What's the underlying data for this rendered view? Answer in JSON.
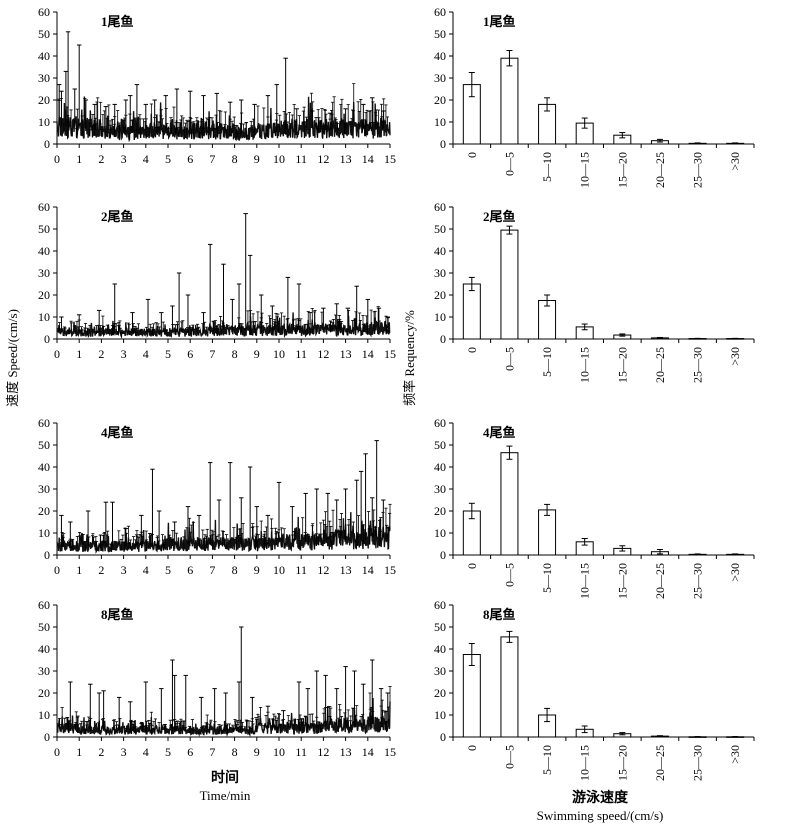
{
  "chart_data": [
    {
      "type": "line",
      "label": "1尾鱼",
      "x_range": [
        0,
        15
      ],
      "ylim": [
        0,
        60
      ],
      "y_ticks": [
        0,
        10,
        20,
        30,
        40,
        50,
        60
      ],
      "x_ticks": [
        "0",
        "1",
        "2",
        "3",
        "4",
        "5",
        "6",
        "7",
        "8",
        "9",
        "10",
        "11",
        "12",
        "13",
        "14",
        "15"
      ],
      "base": [
        8,
        7,
        5,
        5,
        6,
        6,
        6,
        6,
        5,
        6,
        7,
        7,
        7,
        7,
        7,
        6
      ],
      "spikes": [
        [
          0.1,
          27
        ],
        [
          0.2,
          24
        ],
        [
          0.4,
          33
        ],
        [
          0.5,
          51
        ],
        [
          0.8,
          25
        ],
        [
          1.0,
          45
        ],
        [
          1.3,
          20
        ],
        [
          1.7,
          18
        ],
        [
          2.2,
          17
        ],
        [
          2.6,
          18
        ],
        [
          3.1,
          20
        ],
        [
          3.3,
          22
        ],
        [
          3.6,
          27
        ],
        [
          4.0,
          18
        ],
        [
          4.4,
          20
        ],
        [
          4.9,
          22
        ],
        [
          5.4,
          25
        ],
        [
          6.0,
          24
        ],
        [
          6.6,
          22
        ],
        [
          7.2,
          23
        ],
        [
          7.8,
          19
        ],
        [
          8.3,
          20
        ],
        [
          8.9,
          18
        ],
        [
          9.5,
          22
        ],
        [
          9.9,
          27
        ],
        [
          10.3,
          39
        ],
        [
          10.8,
          16
        ],
        [
          11.5,
          15
        ],
        [
          12.3,
          14
        ],
        [
          13.0,
          16
        ],
        [
          13.8,
          18
        ],
        [
          14.2,
          21
        ],
        [
          14.7,
          15
        ]
      ]
    },
    {
      "type": "bar",
      "label": "1尾鱼",
      "categories": [
        "0",
        "0—5",
        "5—10",
        "10—15",
        "15—20",
        "20—25",
        "25—30",
        ">30"
      ],
      "values": [
        27,
        39,
        18,
        9.5,
        4,
        1.5,
        0.3,
        0.3
      ],
      "errors": [
        5.5,
        3.5,
        3,
        2.3,
        1.2,
        0.6,
        0.2,
        0.2
      ],
      "ylim": [
        0,
        60
      ],
      "y_ticks": [
        0,
        10,
        20,
        30,
        40,
        50,
        60
      ]
    },
    {
      "type": "line",
      "label": "2尾鱼",
      "x_range": [
        0,
        15
      ],
      "ylim": [
        0,
        60
      ],
      "y_ticks": [
        0,
        10,
        20,
        30,
        40,
        50,
        60
      ],
      "x_ticks": [
        "0",
        "1",
        "2",
        "3",
        "4",
        "5",
        "6",
        "7",
        "8",
        "9",
        "10",
        "11",
        "12",
        "13",
        "14",
        "15"
      ],
      "base": [
        3,
        3,
        3,
        3,
        3,
        3,
        3,
        4,
        4,
        4,
        4,
        4,
        4,
        4,
        5,
        5
      ],
      "spikes": [
        [
          0.2,
          10
        ],
        [
          1.0,
          11
        ],
        [
          1.9,
          13
        ],
        [
          2.6,
          25
        ],
        [
          3.4,
          12
        ],
        [
          4.1,
          18
        ],
        [
          4.7,
          12
        ],
        [
          5.2,
          15
        ],
        [
          5.5,
          30
        ],
        [
          5.9,
          20
        ],
        [
          6.6,
          12
        ],
        [
          6.9,
          43
        ],
        [
          7.5,
          34
        ],
        [
          7.9,
          18
        ],
        [
          8.2,
          25
        ],
        [
          8.5,
          57
        ],
        [
          8.7,
          38
        ],
        [
          9.2,
          20
        ],
        [
          9.7,
          15
        ],
        [
          10.4,
          28
        ],
        [
          10.9,
          25
        ],
        [
          11.4,
          12
        ],
        [
          12.0,
          14
        ],
        [
          12.6,
          16
        ],
        [
          13.1,
          14
        ],
        [
          13.5,
          24
        ],
        [
          14.0,
          18
        ],
        [
          14.5,
          14
        ],
        [
          14.9,
          10
        ]
      ]
    },
    {
      "type": "bar",
      "label": "2尾鱼",
      "categories": [
        "0",
        "0—5",
        "5—10",
        "10—15",
        "15—20",
        "20—25",
        "25—30",
        ">30"
      ],
      "values": [
        25,
        49.5,
        17.5,
        5.5,
        1.8,
        0.5,
        0.2,
        0.2
      ],
      "errors": [
        3,
        1.8,
        2.5,
        1.3,
        0.5,
        0.2,
        0.1,
        0.1
      ],
      "ylim": [
        0,
        60
      ],
      "y_ticks": [
        0,
        10,
        20,
        30,
        40,
        50,
        60
      ],
      "ylabel": "频率 Requency/%"
    },
    {
      "type": "line",
      "label": "4尾鱼",
      "x_range": [
        0,
        15
      ],
      "ylim": [
        0,
        60
      ],
      "y_ticks": [
        0,
        10,
        20,
        30,
        40,
        50,
        60
      ],
      "x_ticks": [
        "0",
        "1",
        "2",
        "3",
        "4",
        "5",
        "6",
        "7",
        "8",
        "9",
        "10",
        "11",
        "12",
        "13",
        "14",
        "15"
      ],
      "base": [
        4,
        4,
        4,
        4,
        4,
        5,
        5,
        5,
        5,
        5,
        6,
        6,
        7,
        7,
        8,
        8
      ],
      "spikes": [
        [
          0.2,
          18
        ],
        [
          0.6,
          15
        ],
        [
          1.4,
          20
        ],
        [
          2.2,
          24
        ],
        [
          2.5,
          24
        ],
        [
          3.1,
          12
        ],
        [
          3.8,
          18
        ],
        [
          4.3,
          39
        ],
        [
          4.6,
          20
        ],
        [
          5.3,
          15
        ],
        [
          5.9,
          22
        ],
        [
          6.4,
          18
        ],
        [
          6.9,
          42
        ],
        [
          7.3,
          25
        ],
        [
          7.8,
          42
        ],
        [
          8.3,
          26
        ],
        [
          8.7,
          40
        ],
        [
          9.0,
          22
        ],
        [
          9.5,
          18
        ],
        [
          10.0,
          33
        ],
        [
          10.6,
          22
        ],
        [
          11.2,
          28
        ],
        [
          11.7,
          30
        ],
        [
          12.2,
          28
        ],
        [
          12.6,
          25
        ],
        [
          13.0,
          30
        ],
        [
          13.5,
          34
        ],
        [
          13.7,
          38
        ],
        [
          13.9,
          46
        ],
        [
          14.2,
          26
        ],
        [
          14.4,
          52
        ],
        [
          14.7,
          25
        ]
      ]
    },
    {
      "type": "bar",
      "label": "4尾鱼",
      "categories": [
        "0",
        "0—5",
        "5—10",
        "10—15",
        "15—20",
        "20—25",
        "25—30",
        ">30"
      ],
      "values": [
        20,
        46.5,
        20.5,
        6,
        3,
        1.5,
        0.3,
        0.3
      ],
      "errors": [
        3.5,
        3,
        2.5,
        1.5,
        1.2,
        1,
        0.2,
        0.2
      ],
      "ylim": [
        0,
        60
      ],
      "y_ticks": [
        0,
        10,
        20,
        30,
        40,
        50,
        60
      ]
    },
    {
      "type": "line",
      "label": "8尾鱼",
      "x_range": [
        0,
        15
      ],
      "ylim": [
        0,
        60
      ],
      "y_ticks": [
        0,
        10,
        20,
        30,
        40,
        50,
        60
      ],
      "x_ticks": [
        "0",
        "1",
        "2",
        "3",
        "4",
        "5",
        "6",
        "7",
        "8",
        "9",
        "10",
        "11",
        "12",
        "13",
        "14",
        "15"
      ],
      "base": [
        4,
        3,
        3,
        3,
        3,
        3,
        3,
        3,
        3,
        4,
        4,
        4,
        5,
        5,
        6,
        7
      ],
      "spikes": [
        [
          0.6,
          25
        ],
        [
          1.5,
          24
        ],
        [
          1.9,
          20
        ],
        [
          2.1,
          21
        ],
        [
          2.8,
          18
        ],
        [
          3.3,
          16
        ],
        [
          4.0,
          25
        ],
        [
          4.7,
          22
        ],
        [
          5.2,
          35
        ],
        [
          5.3,
          28
        ],
        [
          5.8,
          28
        ],
        [
          6.5,
          18
        ],
        [
          7.1,
          22
        ],
        [
          7.6,
          20
        ],
        [
          8.2,
          25
        ],
        [
          8.3,
          50
        ],
        [
          8.8,
          18
        ],
        [
          9.5,
          14
        ],
        [
          10.2,
          12
        ],
        [
          10.9,
          25
        ],
        [
          11.3,
          22
        ],
        [
          11.7,
          30
        ],
        [
          12.1,
          28
        ],
        [
          12.6,
          22
        ],
        [
          13.0,
          32
        ],
        [
          13.4,
          30
        ],
        [
          13.8,
          24
        ],
        [
          14.2,
          35
        ],
        [
          14.6,
          22
        ],
        [
          14.9,
          20
        ]
      ]
    },
    {
      "type": "bar",
      "label": "8尾鱼",
      "categories": [
        "0",
        "0—5",
        "5—10",
        "10—15",
        "15—20",
        "20—25",
        "25—30",
        ">30"
      ],
      "values": [
        37.5,
        45.5,
        10,
        3.5,
        1.5,
        0.4,
        0.1,
        0.1
      ],
      "errors": [
        5,
        2.5,
        3,
        1.5,
        0.5,
        0.2,
        0.1,
        0.1
      ],
      "ylim": [
        0,
        60
      ],
      "y_ticks": [
        0,
        10,
        20,
        30,
        40,
        50,
        60
      ]
    }
  ],
  "left_axis": {
    "ylabel": "速度 Speed/(cm/s)",
    "xlabel_cn": "时间",
    "xlabel_en": "Time/min"
  },
  "right_axis": {
    "xlabel_cn": "游泳速度",
    "xlabel_en": "Swimming speed/(cm/s)"
  }
}
